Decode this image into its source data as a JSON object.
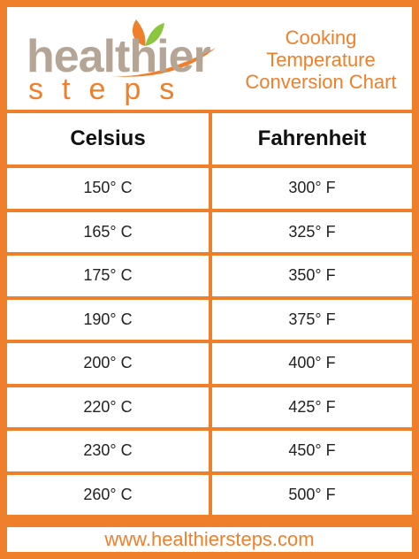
{
  "logo": {
    "word1": "healthier",
    "word2": "steps"
  },
  "title": {
    "line1": "Cooking",
    "line2": "Temperature",
    "line3": "Conversion Chart"
  },
  "table": {
    "headers": [
      "Celsius",
      "Fahrenheit"
    ],
    "rows": [
      [
        "150° C",
        "300° F"
      ],
      [
        "165° C",
        "325° F"
      ],
      [
        "175° C",
        "350° F"
      ],
      [
        "190° C",
        "375° F"
      ],
      [
        "200° C",
        "400° F"
      ],
      [
        "220° C",
        "425° F"
      ],
      [
        "230° C",
        "450° F"
      ],
      [
        "260° C",
        "500° F"
      ]
    ]
  },
  "footer": {
    "url": "www.healthiersteps.com"
  },
  "colors": {
    "accent": "#f07f2b",
    "logo_gray": "#b5a596",
    "leaf_green": "#8cc63f"
  }
}
